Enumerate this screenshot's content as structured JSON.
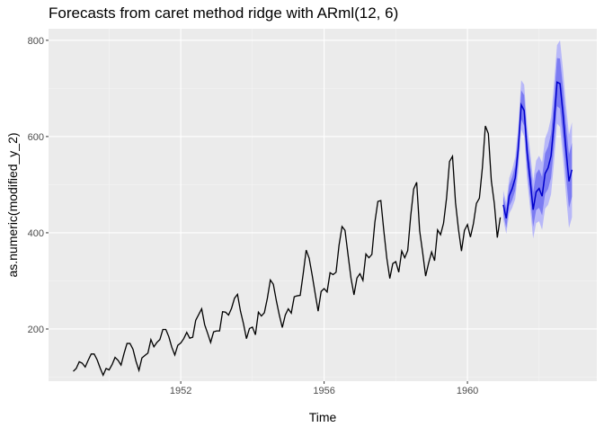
{
  "chart_data": {
    "type": "line",
    "title": "Forecasts from caret method ridge with ARml(12,  6)",
    "xlabel": "Time",
    "ylabel": "as.numeric(modified_y_2)",
    "xlim": [
      1948.31,
      1963.61
    ],
    "ylim": [
      91.6,
      824
    ],
    "x_ticks": [
      1952,
      1956,
      1960
    ],
    "y_ticks": [
      200,
      400,
      600,
      800
    ],
    "grid": true,
    "colors": {
      "history": "#000000",
      "forecast": "#0000CC",
      "band80": "#7B7BF2",
      "band95": "#B8B8F8",
      "panel": "#EBEBEB"
    },
    "history": {
      "start": 1949,
      "frequency": 12,
      "values": [
        112,
        118,
        132,
        129,
        121,
        135,
        148,
        148,
        136,
        119,
        104,
        118,
        115,
        126,
        141,
        135,
        125,
        149,
        170,
        170,
        158,
        133,
        114,
        140,
        145,
        150,
        178,
        163,
        172,
        178,
        199,
        199,
        184,
        162,
        146,
        166,
        171,
        180,
        193,
        181,
        183,
        218,
        230,
        242,
        209,
        191,
        172,
        194,
        196,
        196,
        236,
        235,
        229,
        243,
        264,
        272,
        237,
        211,
        180,
        201,
        204,
        188,
        235,
        227,
        234,
        264,
        302,
        293,
        259,
        229,
        203,
        229,
        242,
        233,
        267,
        269,
        270,
        315,
        364,
        347,
        312,
        274,
        237,
        278,
        284,
        277,
        317,
        313,
        318,
        374,
        413,
        405,
        355,
        306,
        271,
        306,
        315,
        301,
        356,
        348,
        355,
        422,
        465,
        467,
        404,
        347,
        305,
        336,
        340,
        318,
        362,
        348,
        363,
        435,
        491,
        505,
        404,
        359,
        310,
        337,
        360,
        342,
        406,
        396,
        420,
        472,
        548,
        559,
        463,
        407,
        362,
        405,
        417,
        391,
        419,
        461,
        472,
        535,
        622,
        606,
        508,
        461,
        390,
        432
      ]
    },
    "forecast": {
      "start": 1961,
      "frequency": 12,
      "mean": [
        458,
        430,
        477,
        492,
        514,
        573,
        666,
        654,
        566,
        510,
        448,
        485,
        492,
        476,
        523,
        535,
        560,
        629,
        713,
        710,
        647,
        573,
        507,
        531
      ],
      "lo80": [
        440,
        410,
        455,
        468,
        488,
        545,
        636,
        622,
        532,
        474,
        412,
        447,
        452,
        436,
        481,
        491,
        514,
        581,
        663,
        658,
        593,
        519,
        451,
        475
      ],
      "hi80": [
        476,
        450,
        499,
        516,
        540,
        601,
        696,
        686,
        600,
        546,
        484,
        523,
        532,
        516,
        565,
        579,
        606,
        677,
        763,
        762,
        701,
        627,
        563,
        587
      ],
      "lo95": [
        428,
        398,
        440,
        452,
        470,
        526,
        615,
        600,
        510,
        450,
        388,
        420,
        424,
        406,
        450,
        458,
        480,
        546,
        627,
        620,
        555,
        480,
        410,
        432
      ],
      "hi95": [
        488,
        462,
        514,
        532,
        558,
        620,
        717,
        708,
        622,
        570,
        508,
        550,
        560,
        546,
        596,
        612,
        640,
        712,
        790,
        800,
        739,
        666,
        604,
        630
      ]
    }
  }
}
